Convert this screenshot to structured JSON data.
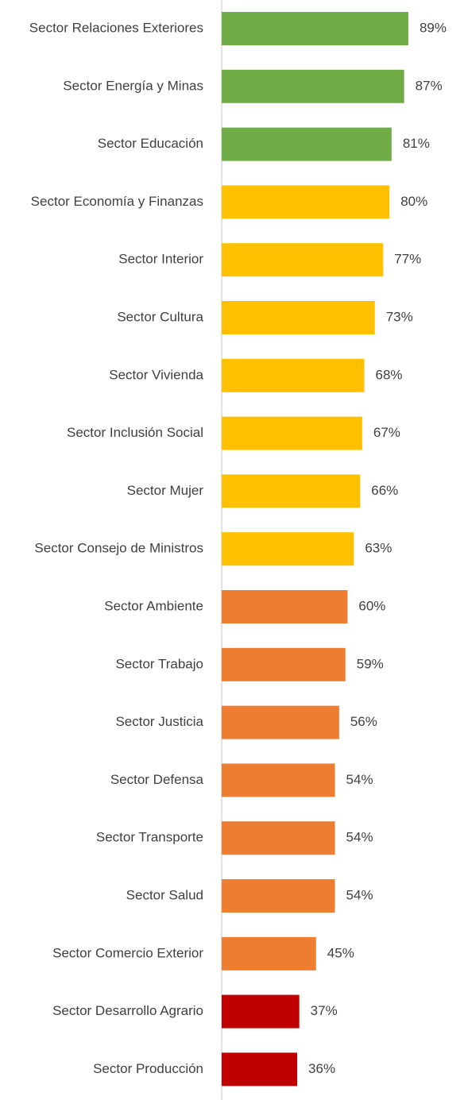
{
  "chart_data": {
    "type": "bar",
    "orientation": "horizontal",
    "categories": [
      "Sector Relaciones Exteriores",
      "Sector Energía y Minas",
      "Sector Educación",
      "Sector Economía y Finanzas",
      "Sector Interior",
      "Sector Cultura",
      "Sector Vivienda",
      "Sector Inclusión Social",
      "Sector Mujer",
      "Sector Consejo de Ministros",
      "Sector Ambiente",
      "Sector Trabajo",
      "Sector Justicia",
      "Sector Defensa",
      "Sector Transporte",
      "Sector Salud",
      "Sector Comercio Exterior",
      "Sector Desarrollo Agrario",
      "Sector Producción"
    ],
    "values": [
      89,
      87,
      81,
      80,
      77,
      73,
      68,
      67,
      66,
      63,
      60,
      59,
      56,
      54,
      54,
      54,
      45,
      37,
      36
    ],
    "value_labels": [
      "89%",
      "87%",
      "81%",
      "80%",
      "77%",
      "73%",
      "68%",
      "67%",
      "66%",
      "63%",
      "60%",
      "59%",
      "56%",
      "54%",
      "54%",
      "54%",
      "45%",
      "37%",
      "36%"
    ],
    "colors": [
      "#70ad47",
      "#70ad47",
      "#70ad47",
      "#ffc000",
      "#ffc000",
      "#ffc000",
      "#ffc000",
      "#ffc000",
      "#ffc000",
      "#ffc000",
      "#ed7d31",
      "#ed7d31",
      "#ed7d31",
      "#ed7d31",
      "#ed7d31",
      "#ed7d31",
      "#ed7d31",
      "#c00000",
      "#c00000"
    ],
    "xlim": [
      0,
      100
    ]
  }
}
